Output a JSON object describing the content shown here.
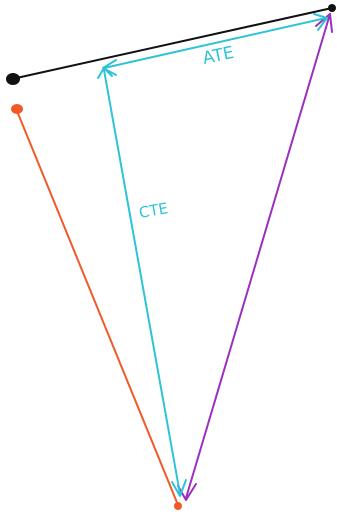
{
  "colors": {
    "background": "#ffffff",
    "black": "#111111",
    "cyan": "#2ec4d6",
    "orange": "#f05a28",
    "purple": "#9b2fc0"
  },
  "labels": {
    "top": "ATE",
    "left": "CTE"
  }
}
